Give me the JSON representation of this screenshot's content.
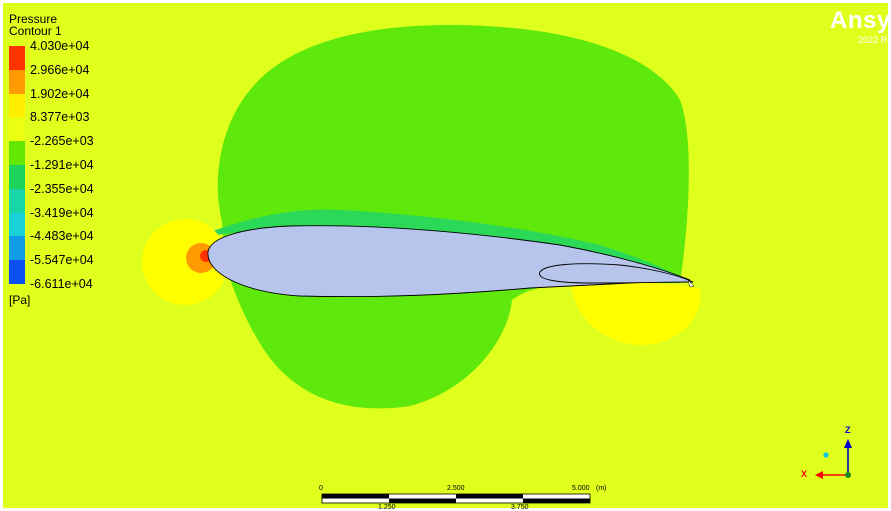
{
  "legend": {
    "title": "Pressure",
    "subtitle": "Contour 1",
    "unit": "[Pa]",
    "levels": [
      "4.030e+04",
      "2.966e+04",
      "1.902e+04",
      "8.377e+03",
      "-2.265e+03",
      "-1.291e+04",
      "-2.355e+04",
      "-3.419e+04",
      "-4.483e+04",
      "-5.547e+04",
      "-6.611e+04"
    ],
    "band_colors": [
      "#ff3300",
      "#ff9a00",
      "#ffee00",
      "#ecff10",
      "#62e800",
      "#1ed35a",
      "#18d6a6",
      "#19d2d8",
      "#129be6",
      "#0b4ff0"
    ]
  },
  "logo": {
    "text": "Ansys",
    "year": "2022 R"
  },
  "scale": {
    "top_ticks": [
      "0",
      "2.500",
      "5.000"
    ],
    "bottom_ticks": [
      "1.250",
      "3.750"
    ],
    "unit": "(m)"
  },
  "triad": {
    "x_label": "X",
    "z_label": "Z"
  },
  "colors": {
    "background": "#dfff1c",
    "green_region": "#5ee80c",
    "airfoil": "#b7c5ec",
    "yellow": "#ffff00"
  }
}
